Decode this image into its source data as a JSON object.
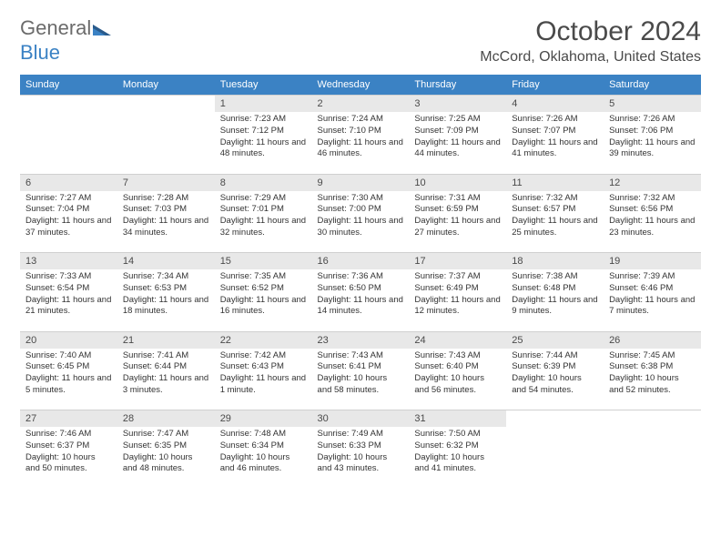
{
  "logo": {
    "text_a": "General",
    "text_b": "Blue"
  },
  "title": "October 2024",
  "location": "McCord, Oklahoma, United States",
  "colors": {
    "header_bg": "#3b82c4",
    "header_fg": "#ffffff",
    "daynum_bg": "#e8e8e8",
    "text": "#333333",
    "title_color": "#4a4a4a",
    "border": "#d0d0d0",
    "page_bg": "#ffffff"
  },
  "typography": {
    "title_fontsize": 30,
    "location_fontsize": 16,
    "dayheader_fontsize": 11,
    "daynum_fontsize": 11,
    "body_fontsize": 9.5
  },
  "layout": {
    "cols": 7,
    "rows": 5,
    "col_width_pct": 14.28
  },
  "day_headers": [
    "Sunday",
    "Monday",
    "Tuesday",
    "Wednesday",
    "Thursday",
    "Friday",
    "Saturday"
  ],
  "weeks": [
    [
      {
        "empty": true
      },
      {
        "empty": true
      },
      {
        "num": "1",
        "sunrise": "Sunrise: 7:23 AM",
        "sunset": "Sunset: 7:12 PM",
        "daylight": "Daylight: 11 hours and 48 minutes."
      },
      {
        "num": "2",
        "sunrise": "Sunrise: 7:24 AM",
        "sunset": "Sunset: 7:10 PM",
        "daylight": "Daylight: 11 hours and 46 minutes."
      },
      {
        "num": "3",
        "sunrise": "Sunrise: 7:25 AM",
        "sunset": "Sunset: 7:09 PM",
        "daylight": "Daylight: 11 hours and 44 minutes."
      },
      {
        "num": "4",
        "sunrise": "Sunrise: 7:26 AM",
        "sunset": "Sunset: 7:07 PM",
        "daylight": "Daylight: 11 hours and 41 minutes."
      },
      {
        "num": "5",
        "sunrise": "Sunrise: 7:26 AM",
        "sunset": "Sunset: 7:06 PM",
        "daylight": "Daylight: 11 hours and 39 minutes."
      }
    ],
    [
      {
        "num": "6",
        "sunrise": "Sunrise: 7:27 AM",
        "sunset": "Sunset: 7:04 PM",
        "daylight": "Daylight: 11 hours and 37 minutes."
      },
      {
        "num": "7",
        "sunrise": "Sunrise: 7:28 AM",
        "sunset": "Sunset: 7:03 PM",
        "daylight": "Daylight: 11 hours and 34 minutes."
      },
      {
        "num": "8",
        "sunrise": "Sunrise: 7:29 AM",
        "sunset": "Sunset: 7:01 PM",
        "daylight": "Daylight: 11 hours and 32 minutes."
      },
      {
        "num": "9",
        "sunrise": "Sunrise: 7:30 AM",
        "sunset": "Sunset: 7:00 PM",
        "daylight": "Daylight: 11 hours and 30 minutes."
      },
      {
        "num": "10",
        "sunrise": "Sunrise: 7:31 AM",
        "sunset": "Sunset: 6:59 PM",
        "daylight": "Daylight: 11 hours and 27 minutes."
      },
      {
        "num": "11",
        "sunrise": "Sunrise: 7:32 AM",
        "sunset": "Sunset: 6:57 PM",
        "daylight": "Daylight: 11 hours and 25 minutes."
      },
      {
        "num": "12",
        "sunrise": "Sunrise: 7:32 AM",
        "sunset": "Sunset: 6:56 PM",
        "daylight": "Daylight: 11 hours and 23 minutes."
      }
    ],
    [
      {
        "num": "13",
        "sunrise": "Sunrise: 7:33 AM",
        "sunset": "Sunset: 6:54 PM",
        "daylight": "Daylight: 11 hours and 21 minutes."
      },
      {
        "num": "14",
        "sunrise": "Sunrise: 7:34 AM",
        "sunset": "Sunset: 6:53 PM",
        "daylight": "Daylight: 11 hours and 18 minutes."
      },
      {
        "num": "15",
        "sunrise": "Sunrise: 7:35 AM",
        "sunset": "Sunset: 6:52 PM",
        "daylight": "Daylight: 11 hours and 16 minutes."
      },
      {
        "num": "16",
        "sunrise": "Sunrise: 7:36 AM",
        "sunset": "Sunset: 6:50 PM",
        "daylight": "Daylight: 11 hours and 14 minutes."
      },
      {
        "num": "17",
        "sunrise": "Sunrise: 7:37 AM",
        "sunset": "Sunset: 6:49 PM",
        "daylight": "Daylight: 11 hours and 12 minutes."
      },
      {
        "num": "18",
        "sunrise": "Sunrise: 7:38 AM",
        "sunset": "Sunset: 6:48 PM",
        "daylight": "Daylight: 11 hours and 9 minutes."
      },
      {
        "num": "19",
        "sunrise": "Sunrise: 7:39 AM",
        "sunset": "Sunset: 6:46 PM",
        "daylight": "Daylight: 11 hours and 7 minutes."
      }
    ],
    [
      {
        "num": "20",
        "sunrise": "Sunrise: 7:40 AM",
        "sunset": "Sunset: 6:45 PM",
        "daylight": "Daylight: 11 hours and 5 minutes."
      },
      {
        "num": "21",
        "sunrise": "Sunrise: 7:41 AM",
        "sunset": "Sunset: 6:44 PM",
        "daylight": "Daylight: 11 hours and 3 minutes."
      },
      {
        "num": "22",
        "sunrise": "Sunrise: 7:42 AM",
        "sunset": "Sunset: 6:43 PM",
        "daylight": "Daylight: 11 hours and 1 minute."
      },
      {
        "num": "23",
        "sunrise": "Sunrise: 7:43 AM",
        "sunset": "Sunset: 6:41 PM",
        "daylight": "Daylight: 10 hours and 58 minutes."
      },
      {
        "num": "24",
        "sunrise": "Sunrise: 7:43 AM",
        "sunset": "Sunset: 6:40 PM",
        "daylight": "Daylight: 10 hours and 56 minutes."
      },
      {
        "num": "25",
        "sunrise": "Sunrise: 7:44 AM",
        "sunset": "Sunset: 6:39 PM",
        "daylight": "Daylight: 10 hours and 54 minutes."
      },
      {
        "num": "26",
        "sunrise": "Sunrise: 7:45 AM",
        "sunset": "Sunset: 6:38 PM",
        "daylight": "Daylight: 10 hours and 52 minutes."
      }
    ],
    [
      {
        "num": "27",
        "sunrise": "Sunrise: 7:46 AM",
        "sunset": "Sunset: 6:37 PM",
        "daylight": "Daylight: 10 hours and 50 minutes."
      },
      {
        "num": "28",
        "sunrise": "Sunrise: 7:47 AM",
        "sunset": "Sunset: 6:35 PM",
        "daylight": "Daylight: 10 hours and 48 minutes."
      },
      {
        "num": "29",
        "sunrise": "Sunrise: 7:48 AM",
        "sunset": "Sunset: 6:34 PM",
        "daylight": "Daylight: 10 hours and 46 minutes."
      },
      {
        "num": "30",
        "sunrise": "Sunrise: 7:49 AM",
        "sunset": "Sunset: 6:33 PM",
        "daylight": "Daylight: 10 hours and 43 minutes."
      },
      {
        "num": "31",
        "sunrise": "Sunrise: 7:50 AM",
        "sunset": "Sunset: 6:32 PM",
        "daylight": "Daylight: 10 hours and 41 minutes."
      },
      {
        "empty": true
      },
      {
        "empty": true
      }
    ]
  ]
}
